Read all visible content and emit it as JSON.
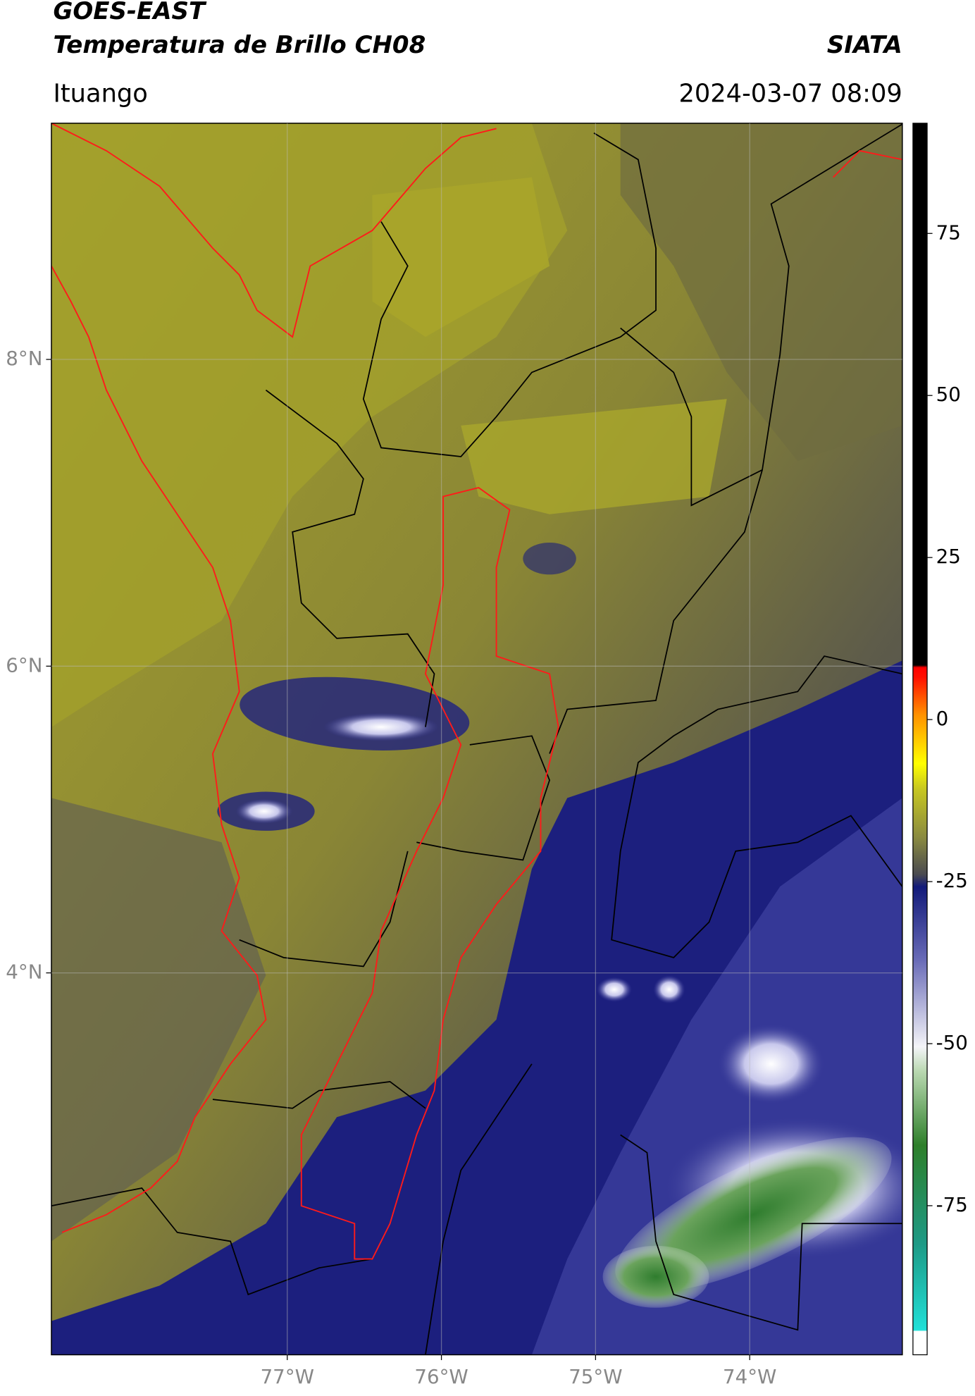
{
  "header": {
    "title": "GOES-EAST",
    "subtitle": "Temperatura de Brillo CH08",
    "source": "SIATA",
    "location": "Ituango",
    "timestamp": "2024-03-07 08:09"
  },
  "map": {
    "xlim": [
      -78.53,
      -73.01
    ],
    "ylim": [
      1.51,
      9.54
    ],
    "xticks": [
      {
        "value": -77,
        "label": "77°W"
      },
      {
        "value": -76,
        "label": "76°W"
      },
      {
        "value": -75,
        "label": "75°W"
      },
      {
        "value": -74,
        "label": "74°W"
      }
    ],
    "yticks": [
      {
        "value": 8,
        "label": "8°N"
      },
      {
        "value": 6,
        "label": "6°N"
      },
      {
        "value": 4,
        "label": "4°N"
      }
    ]
  },
  "colorbar": {
    "lim": [
      -98,
      92
    ],
    "ticks": [
      75,
      50,
      25,
      0,
      -25,
      -50,
      -75
    ]
  }
}
